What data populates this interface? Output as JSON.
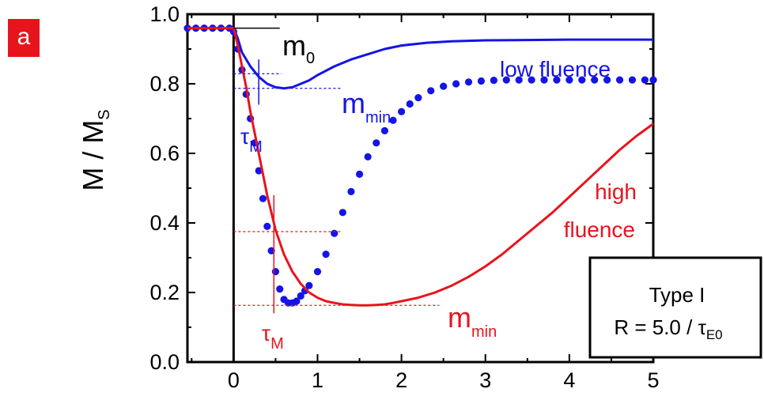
{
  "panel_label": "a",
  "colors": {
    "low": "#1414e6",
    "high": "#e8141c",
    "axis": "#000000",
    "badge": "#e8141c"
  },
  "chart_data": {
    "type": "line",
    "title": "",
    "xlabel": "",
    "ylabel": "M / M",
    "ylabel_sub": "S",
    "xlim": [
      -0.55,
      5
    ],
    "ylim": [
      0,
      1.0
    ],
    "xticks": [
      "0",
      "1",
      "2",
      "3",
      "4",
      "5"
    ],
    "yticks": [
      "0.0",
      "0.2",
      "0.4",
      "0.6",
      "0.8",
      "1.0"
    ],
    "series": [
      {
        "name": "low fluence",
        "style": "solid",
        "color": "#1414e6",
        "x": [
          -0.55,
          0,
          0.05,
          0.1,
          0.2,
          0.3,
          0.4,
          0.5,
          0.6,
          0.7,
          0.8,
          0.9,
          1.0,
          1.2,
          1.4,
          1.6,
          1.8,
          2.0,
          2.3,
          2.6,
          3.0,
          3.5,
          4.0,
          4.5,
          5.0
        ],
        "y": [
          0.96,
          0.96,
          0.93,
          0.89,
          0.85,
          0.82,
          0.8,
          0.79,
          0.787,
          0.79,
          0.8,
          0.81,
          0.825,
          0.85,
          0.87,
          0.885,
          0.9,
          0.91,
          0.918,
          0.922,
          0.925,
          0.926,
          0.927,
          0.927,
          0.927
        ]
      },
      {
        "name": "",
        "style": "dotted",
        "color": "#1414e6",
        "x": [
          -0.55,
          -0.45,
          -0.35,
          -0.25,
          -0.15,
          -0.05,
          0,
          0.05,
          0.1,
          0.15,
          0.2,
          0.25,
          0.3,
          0.35,
          0.4,
          0.45,
          0.5,
          0.55,
          0.6,
          0.65,
          0.7,
          0.75,
          0.8,
          0.85,
          0.9,
          1.0,
          1.1,
          1.2,
          1.3,
          1.4,
          1.5,
          1.6,
          1.7,
          1.8,
          1.9,
          2.0,
          2.1,
          2.2,
          2.35,
          2.5,
          2.65,
          2.8,
          2.95,
          3.1,
          3.25,
          3.4,
          3.55,
          3.7,
          3.85,
          4.0,
          4.15,
          4.3,
          4.45,
          4.6,
          4.75,
          4.9,
          5.0
        ],
        "y": [
          0.96,
          0.96,
          0.96,
          0.96,
          0.96,
          0.96,
          0.95,
          0.9,
          0.84,
          0.77,
          0.7,
          0.63,
          0.55,
          0.47,
          0.39,
          0.32,
          0.26,
          0.21,
          0.18,
          0.17,
          0.17,
          0.175,
          0.19,
          0.205,
          0.22,
          0.26,
          0.31,
          0.37,
          0.43,
          0.49,
          0.54,
          0.59,
          0.63,
          0.665,
          0.695,
          0.72,
          0.742,
          0.76,
          0.78,
          0.793,
          0.8,
          0.805,
          0.808,
          0.81,
          0.811,
          0.811,
          0.811,
          0.811,
          0.811,
          0.811,
          0.811,
          0.811,
          0.811,
          0.811,
          0.811,
          0.811,
          0.811
        ]
      },
      {
        "name": "high fluence",
        "style": "solid",
        "color": "#e8141c",
        "x": [
          -0.55,
          0,
          0.05,
          0.1,
          0.15,
          0.2,
          0.25,
          0.3,
          0.4,
          0.5,
          0.6,
          0.7,
          0.8,
          0.9,
          1.0,
          1.1,
          1.2,
          1.3,
          1.4,
          1.5,
          1.6,
          1.7,
          1.8,
          1.9,
          2.0,
          2.2,
          2.4,
          2.6,
          2.8,
          3.0,
          3.2,
          3.4,
          3.6,
          3.8,
          4.0,
          4.2,
          4.4,
          4.6,
          4.8,
          5.0
        ],
        "y": [
          0.96,
          0.96,
          0.91,
          0.85,
          0.79,
          0.72,
          0.66,
          0.6,
          0.48,
          0.38,
          0.31,
          0.26,
          0.225,
          0.2,
          0.185,
          0.175,
          0.17,
          0.166,
          0.164,
          0.163,
          0.163,
          0.164,
          0.166,
          0.17,
          0.175,
          0.185,
          0.2,
          0.22,
          0.245,
          0.275,
          0.31,
          0.35,
          0.39,
          0.43,
          0.475,
          0.52,
          0.565,
          0.61,
          0.65,
          0.685
        ]
      }
    ],
    "annotations": {
      "m0": {
        "text": "m",
        "sub": "0"
      },
      "low_label": "low fluence",
      "high_label_1": "high",
      "high_label_2": "fluence",
      "mmin_low": {
        "text": "m",
        "sub": "min"
      },
      "mmin_high": {
        "text": "m",
        "sub": "min"
      },
      "tau_low": {
        "text": "τ",
        "sub": "M"
      },
      "tau_high": {
        "text": "τ",
        "sub": "M"
      }
    },
    "legend_box": {
      "line1": "Type I",
      "line2": "R = 5.0 / τ",
      "line2_sub": "E0"
    }
  }
}
